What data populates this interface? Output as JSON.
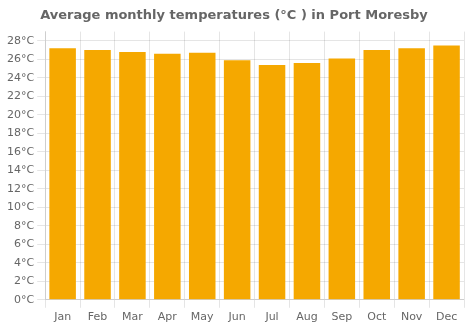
{
  "chart_data": {
    "type": "bar",
    "title": "Average monthly temperatures (°C ) in Port Moresby",
    "categories": [
      "Jan",
      "Feb",
      "Mar",
      "Apr",
      "May",
      "Jun",
      "Jul",
      "Aug",
      "Sep",
      "Oct",
      "Nov",
      "Dec"
    ],
    "values": [
      27.2,
      27.0,
      26.8,
      26.6,
      26.7,
      25.9,
      25.4,
      25.6,
      26.1,
      27.0,
      27.2,
      27.5
    ],
    "color": "#F5A800",
    "ylim": [
      0,
      29
    ],
    "yticks": [
      {
        "value": 0,
        "label": "0°C"
      },
      {
        "value": 2,
        "label": "2°C"
      },
      {
        "value": 4,
        "label": "4°C"
      },
      {
        "value": 6,
        "label": "6°C"
      },
      {
        "value": 8,
        "label": "8°C"
      },
      {
        "value": 10,
        "label": "10°C"
      },
      {
        "value": 12,
        "label": "12°C"
      },
      {
        "value": 14,
        "label": "14°C"
      },
      {
        "value": 16,
        "label": "16°C"
      },
      {
        "value": 18,
        "label": "18°C"
      },
      {
        "value": 20,
        "label": "20°C"
      },
      {
        "value": 22,
        "label": "22°C"
      },
      {
        "value": 24,
        "label": "24°C"
      },
      {
        "value": 26,
        "label": "26°C"
      },
      {
        "value": 28,
        "label": "28°C"
      }
    ],
    "grid": true
  }
}
